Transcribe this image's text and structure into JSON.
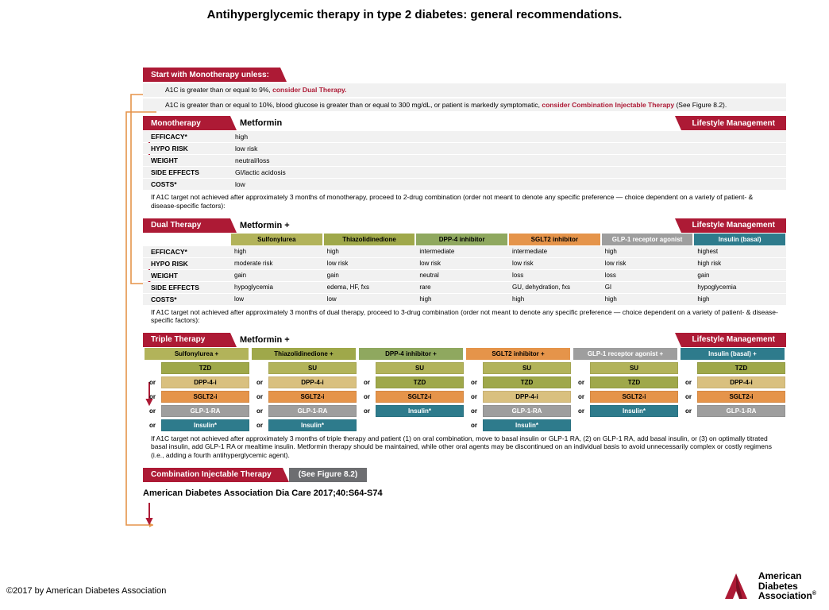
{
  "page_title": "Antihyperglycemic therapy in type 2 diabetes: general recommendations.",
  "citation": "American Diabetes Association Dia Care 2017;40:S64-S74",
  "copyright": "©2017 by American Diabetes Association",
  "logo_line1": "American",
  "logo_line2": "Diabetes",
  "logo_line3": "Association",
  "colors": {
    "red": "#ad1a35",
    "gray": "#6d6e71",
    "olive": "#b2b35a",
    "green": "#8fa85f",
    "orange": "#e5944a",
    "chipgray": "#9e9e9e",
    "teal": "#2e7b8c",
    "tan": "#d9c07f",
    "arrow_orange": "#e5944a",
    "arrow_red": "#ad1a35"
  },
  "start": {
    "header": "Start with Monotherapy unless:",
    "bullet1_a": "A1C is greater than or equal to 9%, ",
    "bullet1_b": "consider Dual Therapy.",
    "bullet2_a": "A1C is greater than or equal to 10%, blood glucose is greater than or equal to 300 mg/dL, or patient is markedly symptomatic, ",
    "bullet2_b": "consider Combination Injectable Therapy",
    "bullet2_c": " (See Figure 8.2)."
  },
  "mono": {
    "header": "Monotherapy",
    "drug": "Metformin",
    "lifestyle": "Lifestyle Management",
    "rows": [
      {
        "label": "EFFICACY*",
        "value": "high"
      },
      {
        "label": "HYPO RISK",
        "value": "low risk"
      },
      {
        "label": "WEIGHT",
        "value": "neutral/loss"
      },
      {
        "label": "SIDE EFFECTS",
        "value": "GI/lactic acidosis"
      },
      {
        "label": "COSTS*",
        "value": "low"
      }
    ],
    "note": "If A1C target not achieved after approximately 3 months of monotherapy, proceed to 2-drug combination (order not meant to denote any specific preference — choice dependent on a variety of patient- & disease-specific factors):"
  },
  "dual": {
    "header": "Dual Therapy",
    "base": "Metformin +",
    "lifestyle": "Lifestyle Management",
    "drugs": [
      "Sulfonylurea",
      "Thiazolidinedione",
      "DPP-4 inhibitor",
      "SGLT2 inhibitor",
      "GLP-1 receptor agonist",
      "Insulin (basal)"
    ],
    "drug_colors": [
      "c-olive",
      "c-olive2",
      "c-green",
      "c-orange",
      "c-gray",
      "c-teal"
    ],
    "rows": [
      {
        "label": "EFFICACY*",
        "cells": [
          "high",
          "high",
          "intermediate",
          "intermediate",
          "high",
          "highest"
        ]
      },
      {
        "label": "HYPO RISK",
        "cells": [
          "moderate risk",
          "low risk",
          "low risk",
          "low risk",
          "low risk",
          "high risk"
        ]
      },
      {
        "label": "WEIGHT",
        "cells": [
          "gain",
          "gain",
          "neutral",
          "loss",
          "loss",
          "gain"
        ]
      },
      {
        "label": "SIDE EFFECTS",
        "cells": [
          "hypoglycemia",
          "edema, HF, fxs",
          "rare",
          "GU, dehydration, fxs",
          "GI",
          "hypoglycemia"
        ]
      },
      {
        "label": "COSTS*",
        "cells": [
          "low",
          "low",
          "high",
          "high",
          "high",
          "high"
        ]
      }
    ],
    "note": "If A1C target not achieved after approximately 3 months of dual therapy, proceed to 3-drug combination (order not meant to denote any specific preference — choice dependent on a variety of patient- & disease-specific factors):"
  },
  "triple": {
    "header": "Triple Therapy",
    "base": "Metformin +",
    "lifestyle": "Lifestyle Management",
    "col_heads": [
      "Sulfonylurea +",
      "Thiazolidinedione +",
      "DPP-4 inhibitor +",
      "SGLT2 inhibitor +",
      "GLP-1 receptor agonist +",
      "Insulin (basal) +"
    ],
    "col_head_colors": [
      "c-olive",
      "c-olive2",
      "c-green",
      "c-orange",
      "c-gray",
      "c-teal"
    ],
    "or_label": "or",
    "cols": [
      [
        {
          "t": "TZD",
          "c": "c-olive2"
        },
        {
          "t": "DPP-4-i",
          "c": "c-tan"
        },
        {
          "t": "SGLT2-i",
          "c": "c-orange"
        },
        {
          "t": "GLP-1-RA",
          "c": "c-gray"
        },
        {
          "t": "Insulin*",
          "c": "c-teal"
        }
      ],
      [
        {
          "t": "SU",
          "c": "c-olive"
        },
        {
          "t": "DPP-4-i",
          "c": "c-tan"
        },
        {
          "t": "SGLT2-i",
          "c": "c-orange"
        },
        {
          "t": "GLP-1-RA",
          "c": "c-gray"
        },
        {
          "t": "Insulin*",
          "c": "c-teal"
        }
      ],
      [
        {
          "t": "SU",
          "c": "c-olive"
        },
        {
          "t": "TZD",
          "c": "c-olive2"
        },
        {
          "t": "SGLT2-i",
          "c": "c-orange"
        },
        {
          "t": "Insulin*",
          "c": "c-teal"
        }
      ],
      [
        {
          "t": "SU",
          "c": "c-olive"
        },
        {
          "t": "TZD",
          "c": "c-olive2"
        },
        {
          "t": "DPP-4-i",
          "c": "c-tan"
        },
        {
          "t": "GLP-1-RA",
          "c": "c-gray"
        },
        {
          "t": "Insulin*",
          "c": "c-teal"
        }
      ],
      [
        {
          "t": "SU",
          "c": "c-olive"
        },
        {
          "t": "TZD",
          "c": "c-olive2"
        },
        {
          "t": "SGLT2-i",
          "c": "c-orange"
        },
        {
          "t": "Insulin*",
          "c": "c-teal"
        }
      ],
      [
        {
          "t": "TZD",
          "c": "c-olive2"
        },
        {
          "t": "DPP-4-i",
          "c": "c-tan"
        },
        {
          "t": "SGLT2-i",
          "c": "c-orange"
        },
        {
          "t": "GLP-1-RA",
          "c": "c-gray"
        }
      ]
    ],
    "note": "If A1C target not achieved after approximately 3 months of triple therapy and patient (1) on oral combination, move to basal insulin or GLP-1 RA, (2) on GLP-1 RA, add basal insulin, or (3) on optimally titrated basal insulin, add GLP-1 RA or mealtime insulin. Metformin therapy should be maintained, while other oral agents may be discontinued on an individual basis to avoid unnecessarily complex or costly regimens (i.e., adding a fourth antihyperglycemic agent)."
  },
  "combo": {
    "header": "Combination Injectable Therapy",
    "ref": "(See Figure 8.2)"
  }
}
